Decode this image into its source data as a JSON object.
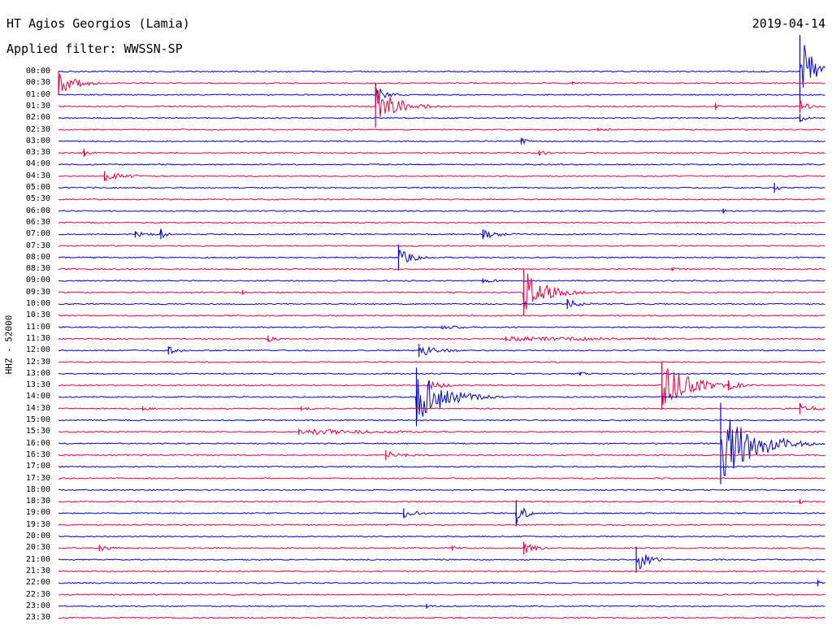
{
  "header": {
    "station": "HT Agios Georgios (Lamia)",
    "date": "2019-04-14",
    "filter": "Applied filter: WWSSN-SP",
    "channel_label": "HHZ - 52000"
  },
  "colors": {
    "odd_row": "#0000cc",
    "even_row": "#e8003c",
    "background": "#ffffff"
  },
  "chart_data": {
    "type": "line",
    "title": "HT Agios Georgios (Lamia)",
    "ylabel": "HHZ - 52000",
    "row_labels": [
      "00:00",
      "00:30",
      "01:00",
      "01:30",
      "02:00",
      "02:30",
      "03:00",
      "03:30",
      "04:00",
      "04:30",
      "05:00",
      "05:30",
      "06:00",
      "06:30",
      "07:00",
      "07:30",
      "08:00",
      "08:30",
      "09:00",
      "09:30",
      "10:00",
      "10:30",
      "11:00",
      "11:30",
      "12:00",
      "12:30",
      "13:00",
      "13:30",
      "14:00",
      "14:30",
      "15:00",
      "15:30",
      "16:00",
      "16:30",
      "17:00",
      "17:30",
      "18:00",
      "18:30",
      "19:00",
      "19:30",
      "20:00",
      "20:30",
      "21:00",
      "21:30",
      "22:00",
      "22:30",
      "23:00",
      "23:30"
    ],
    "row_duration_minutes": 30,
    "events": [
      {
        "row": 0,
        "minute": 29.0,
        "amplitude": 45,
        "duration": 1.0
      },
      {
        "row": 1,
        "minute": 0.0,
        "amplitude": 15,
        "duration": 1.2
      },
      {
        "row": 1,
        "minute": 20.1,
        "amplitude": 2,
        "duration": 0.2
      },
      {
        "row": 2,
        "minute": 12.4,
        "amplitude": 14,
        "duration": 0.7
      },
      {
        "row": 3,
        "minute": 12.4,
        "amplitude": 26,
        "duration": 1.5
      },
      {
        "row": 3,
        "minute": 25.7,
        "amplitude": 4,
        "duration": 0.3
      },
      {
        "row": 3,
        "minute": 29.0,
        "amplitude": 8,
        "duration": 0.6
      },
      {
        "row": 4,
        "minute": 29.0,
        "amplitude": 5,
        "duration": 0.5
      },
      {
        "row": 5,
        "minute": 21.1,
        "amplitude": 2,
        "duration": 1.4
      },
      {
        "row": 6,
        "minute": 18.1,
        "amplitude": 4,
        "duration": 0.6
      },
      {
        "row": 7,
        "minute": 1.0,
        "amplitude": 5,
        "duration": 0.5
      },
      {
        "row": 7,
        "minute": 18.8,
        "amplitude": 3,
        "duration": 0.9
      },
      {
        "row": 9,
        "minute": 1.8,
        "amplitude": 6,
        "duration": 1.5
      },
      {
        "row": 10,
        "minute": 28.0,
        "amplitude": 6,
        "duration": 0.4
      },
      {
        "row": 12,
        "minute": 26.0,
        "amplitude": 3,
        "duration": 0.2
      },
      {
        "row": 14,
        "minute": 3.0,
        "amplitude": 4,
        "duration": 1.2
      },
      {
        "row": 14,
        "minute": 4.0,
        "amplitude": 6,
        "duration": 0.5
      },
      {
        "row": 14,
        "minute": 16.6,
        "amplitude": 6,
        "duration": 1.2
      },
      {
        "row": 16,
        "minute": 13.3,
        "amplitude": 16,
        "duration": 0.8
      },
      {
        "row": 17,
        "minute": 24.0,
        "amplitude": 2,
        "duration": 2.0
      },
      {
        "row": 18,
        "minute": 16.6,
        "amplitude": 3,
        "duration": 1.2
      },
      {
        "row": 19,
        "minute": 7.2,
        "amplitude": 3,
        "duration": 0.5
      },
      {
        "row": 19,
        "minute": 18.2,
        "amplitude": 28,
        "duration": 1.5
      },
      {
        "row": 20,
        "minute": 19.9,
        "amplitude": 6,
        "duration": 1.2
      },
      {
        "row": 22,
        "minute": 15.0,
        "amplitude": 2,
        "duration": 3.0
      },
      {
        "row": 23,
        "minute": 8.2,
        "amplitude": 4,
        "duration": 0.8
      },
      {
        "row": 23,
        "minute": 17.5,
        "amplitude": 3,
        "duration": 12.0
      },
      {
        "row": 24,
        "minute": 4.3,
        "amplitude": 5,
        "duration": 0.8
      },
      {
        "row": 24,
        "minute": 14.1,
        "amplitude": 8,
        "duration": 1.5
      },
      {
        "row": 26,
        "minute": 20.4,
        "amplitude": 2,
        "duration": 1.0
      },
      {
        "row": 27,
        "minute": 14.5,
        "amplitude": 6,
        "duration": 1.0
      },
      {
        "row": 27,
        "minute": 23.6,
        "amplitude": 30,
        "duration": 1.8
      },
      {
        "row": 27,
        "minute": 26.2,
        "amplitude": 6,
        "duration": 1.0
      },
      {
        "row": 28,
        "minute": 14.0,
        "amplitude": 36,
        "duration": 1.8
      },
      {
        "row": 29,
        "minute": 3.3,
        "amplitude": 3,
        "duration": 0.8
      },
      {
        "row": 29,
        "minute": 9.5,
        "amplitude": 3,
        "duration": 0.8
      },
      {
        "row": 29,
        "minute": 29.0,
        "amplitude": 7,
        "duration": 1.0
      },
      {
        "row": 31,
        "minute": 9.4,
        "amplitude": 4,
        "duration": 6.5
      },
      {
        "row": 32,
        "minute": 25.9,
        "amplitude": 50,
        "duration": 2.2
      },
      {
        "row": 33,
        "minute": 12.8,
        "amplitude": 6,
        "duration": 1.2
      },
      {
        "row": 37,
        "minute": 29.0,
        "amplitude": 3,
        "duration": 0.5
      },
      {
        "row": 38,
        "minute": 13.5,
        "amplitude": 6,
        "duration": 1.0
      },
      {
        "row": 38,
        "minute": 17.9,
        "amplitude": 16,
        "duration": 0.6
      },
      {
        "row": 41,
        "minute": 1.6,
        "amplitude": 4,
        "duration": 1.0
      },
      {
        "row": 41,
        "minute": 15.4,
        "amplitude": 3,
        "duration": 0.8
      },
      {
        "row": 41,
        "minute": 18.2,
        "amplitude": 8,
        "duration": 1.0
      },
      {
        "row": 42,
        "minute": 22.6,
        "amplitude": 16,
        "duration": 0.8
      },
      {
        "row": 44,
        "minute": 29.7,
        "amplitude": 4,
        "duration": 0.5
      },
      {
        "row": 46,
        "minute": 14.4,
        "amplitude": 3,
        "duration": 0.8
      }
    ]
  }
}
